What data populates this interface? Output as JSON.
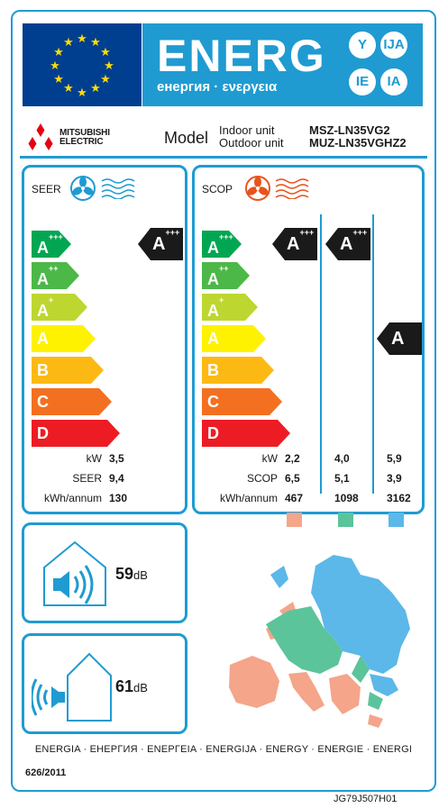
{
  "header": {
    "energy_word": "ENERG",
    "energy_subtitle": "енергия · ενεργεια",
    "language_codes": [
      "Y",
      "IJA",
      "IE",
      "IA"
    ],
    "colors": {
      "eu_blue": "#003e8f",
      "eu_star": "#ffdd00",
      "accent": "#1f9bd1"
    }
  },
  "brand": {
    "name_line1": "MITSUBISHI",
    "name_line2": "ELECTRIC",
    "logo_icon": "three-diamond-logo-icon"
  },
  "model": {
    "label": "Model",
    "indoor_label": "Indoor unit",
    "outdoor_label": "Outdoor unit",
    "indoor_model": "MSZ-LN35VG2",
    "outdoor_model": "MUZ-LN35VGHZ2"
  },
  "energy_scale": [
    {
      "base": "A",
      "plus": "+++",
      "color": "#00a651"
    },
    {
      "base": "A",
      "plus": "++",
      "color": "#4cb848"
    },
    {
      "base": "A",
      "plus": "+",
      "color": "#bed630"
    },
    {
      "base": "A",
      "plus": "",
      "color": "#fff200"
    },
    {
      "base": "B",
      "plus": "",
      "color": "#fdb913"
    },
    {
      "base": "C",
      "plus": "",
      "color": "#f37021"
    },
    {
      "base": "D",
      "plus": "",
      "color": "#ed1c24"
    }
  ],
  "seer": {
    "label": "SEER",
    "icon": "cooling-fan-icon",
    "rating": {
      "base": "A",
      "plus": "+++"
    },
    "stats": [
      {
        "key": "kW",
        "value": "3,5"
      },
      {
        "key": "SEER",
        "value": "9,4"
      },
      {
        "key": "kWh/annum",
        "value": "130"
      }
    ]
  },
  "scop": {
    "label": "SCOP",
    "icon": "heating-fan-icon",
    "zones": [
      {
        "color": "#f4a58a",
        "rating": {
          "base": "A",
          "plus": "+++"
        },
        "kw": "2,2",
        "scop": "6,5",
        "kwh": "467"
      },
      {
        "color": "#5cc49a",
        "rating": {
          "base": "A",
          "plus": "+++"
        },
        "kw": "4,0",
        "scop": "5,1",
        "kwh": "1098"
      },
      {
        "color": "#5bb8e8",
        "rating": {
          "base": "A",
          "plus": ""
        },
        "kw": "5,9",
        "scop": "3,9",
        "kwh": "3162"
      }
    ],
    "stat_keys": {
      "kw": "kW",
      "scop": "SCOP",
      "kwh": "kWh/annum"
    }
  },
  "noise": {
    "indoor": {
      "value": "59",
      "unit": "dB",
      "icon": "indoor-speaker-icon"
    },
    "outdoor": {
      "value": "61",
      "unit": "dB",
      "icon": "outdoor-speaker-icon"
    }
  },
  "footer": {
    "languages": "ENERGIA · ЕНЕРГИЯ · ΕΝΕΡΓΕΙΑ · ENERGIJA · ENERGY · ENERGIE · ENERGI",
    "regulation": "626/2011",
    "doc_code": "JG79J507H01"
  }
}
